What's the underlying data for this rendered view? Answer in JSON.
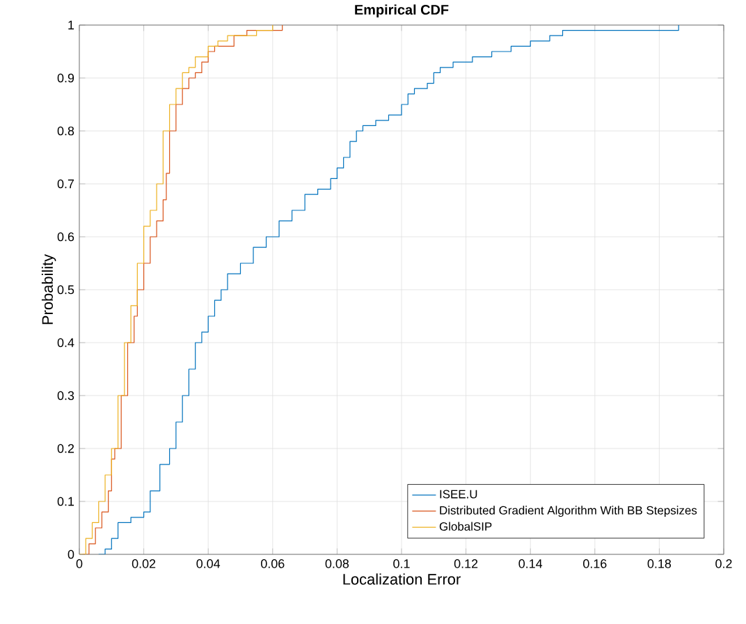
{
  "chart_data": {
    "type": "step",
    "title": "Empirical CDF",
    "xlabel": "Localization Error",
    "ylabel": "Probability",
    "xlim": [
      0,
      0.2
    ],
    "ylim": [
      0,
      1
    ],
    "xticks": [
      0,
      0.02,
      0.04,
      0.06,
      0.08,
      0.1,
      0.12,
      0.14,
      0.16,
      0.18,
      0.2
    ],
    "yticks": [
      0,
      0.1,
      0.2,
      0.3,
      0.4,
      0.5,
      0.6,
      0.7,
      0.8,
      0.9,
      1
    ],
    "grid": true,
    "legend": "bottom right",
    "series": [
      {
        "name": "ISEE.U",
        "color": "#0072bd",
        "x": [
          0.006,
          0.008,
          0.01,
          0.012,
          0.016,
          0.02,
          0.022,
          0.025,
          0.028,
          0.03,
          0.032,
          0.034,
          0.036,
          0.038,
          0.04,
          0.042,
          0.044,
          0.046,
          0.05,
          0.054,
          0.058,
          0.062,
          0.066,
          0.07,
          0.074,
          0.078,
          0.08,
          0.082,
          0.084,
          0.086,
          0.088,
          0.092,
          0.096,
          0.1,
          0.102,
          0.104,
          0.108,
          0.11,
          0.112,
          0.116,
          0.122,
          0.128,
          0.134,
          0.14,
          0.146,
          0.15,
          0.186
        ],
        "values": [
          0,
          0.01,
          0.03,
          0.06,
          0.07,
          0.08,
          0.12,
          0.17,
          0.2,
          0.25,
          0.3,
          0.35,
          0.4,
          0.42,
          0.45,
          0.48,
          0.5,
          0.53,
          0.55,
          0.58,
          0.6,
          0.63,
          0.65,
          0.68,
          0.69,
          0.71,
          0.73,
          0.75,
          0.78,
          0.8,
          0.81,
          0.82,
          0.83,
          0.85,
          0.87,
          0.88,
          0.89,
          0.91,
          0.92,
          0.93,
          0.94,
          0.95,
          0.96,
          0.97,
          0.98,
          0.99,
          1
        ]
      },
      {
        "name": "Distributed Gradient Algorithm With BB Stepsizes",
        "color": "#d95319",
        "x": [
          0.001,
          0.003,
          0.005,
          0.007,
          0.009,
          0.01,
          0.011,
          0.013,
          0.015,
          0.017,
          0.018,
          0.02,
          0.022,
          0.024,
          0.026,
          0.027,
          0.028,
          0.03,
          0.032,
          0.034,
          0.036,
          0.038,
          0.04,
          0.042,
          0.048,
          0.052,
          0.063
        ],
        "values": [
          0,
          0.02,
          0.05,
          0.08,
          0.12,
          0.18,
          0.2,
          0.3,
          0.4,
          0.45,
          0.5,
          0.55,
          0.6,
          0.63,
          0.67,
          0.72,
          0.8,
          0.85,
          0.88,
          0.9,
          0.91,
          0.93,
          0.95,
          0.96,
          0.98,
          0.99,
          1
        ]
      },
      {
        "name": "GlobalSIP",
        "color": "#edb120",
        "x": [
          0,
          0.002,
          0.004,
          0.006,
          0.008,
          0.01,
          0.012,
          0.014,
          0.016,
          0.018,
          0.02,
          0.022,
          0.024,
          0.026,
          0.028,
          0.03,
          0.032,
          0.034,
          0.036,
          0.04,
          0.043,
          0.046,
          0.055,
          0.06
        ],
        "values": [
          0,
          0.03,
          0.06,
          0.1,
          0.15,
          0.2,
          0.3,
          0.4,
          0.47,
          0.55,
          0.62,
          0.65,
          0.7,
          0.8,
          0.85,
          0.88,
          0.91,
          0.92,
          0.94,
          0.96,
          0.97,
          0.98,
          0.99,
          1
        ]
      }
    ]
  }
}
